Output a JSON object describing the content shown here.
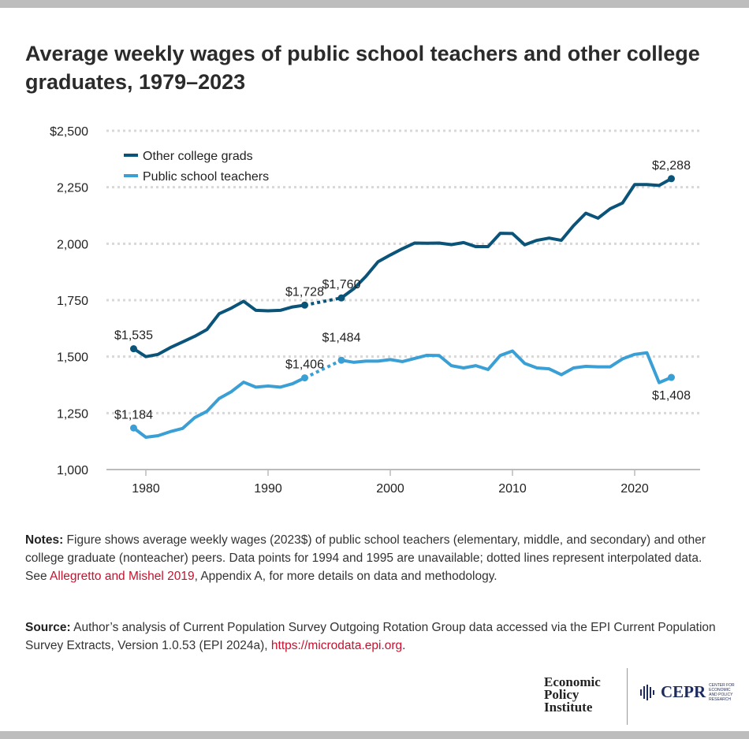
{
  "title": "Average weekly wages of public school teachers and other college graduates, 1979–2023",
  "chart_data": {
    "type": "line",
    "title": "Average weekly wages of public school teachers and other college graduates, 1979–2023",
    "xlabel": "",
    "ylabel": "",
    "xlim": [
      1977,
      2025
    ],
    "ylim": [
      1000,
      2500
    ],
    "x_ticks": [
      "1980",
      "1990",
      "2000",
      "2010",
      "2020"
    ],
    "y_ticks": [
      "$2,500",
      "2,250",
      "2,000",
      "1,750",
      "1,500",
      "1,250",
      "1,000"
    ],
    "y_tick_values": [
      2500,
      2250,
      2000,
      1750,
      1500,
      1250,
      1000
    ],
    "grid": true,
    "legend_position": "top-left",
    "interpolated_gap": [
      1993,
      1996
    ],
    "series": [
      {
        "name": "Other college grads",
        "color": "#0b5479",
        "x": [
          1979,
          1980,
          1981,
          1982,
          1983,
          1984,
          1985,
          1986,
          1987,
          1988,
          1989,
          1990,
          1991,
          1992,
          1993,
          1996,
          1997,
          1998,
          1999,
          2000,
          2001,
          2002,
          2003,
          2004,
          2005,
          2006,
          2007,
          2008,
          2009,
          2010,
          2011,
          2012,
          2013,
          2014,
          2015,
          2016,
          2017,
          2018,
          2019,
          2020,
          2021,
          2022,
          2023
        ],
        "values": [
          1535,
          1500,
          1510,
          1540,
          1565,
          1590,
          1620,
          1690,
          1715,
          1745,
          1705,
          1703,
          1705,
          1720,
          1728,
          1760,
          1800,
          1855,
          1920,
          1950,
          1978,
          2003,
          2002,
          2003,
          1996,
          2005,
          1987,
          1987,
          2046,
          2045,
          1995,
          2015,
          2025,
          2015,
          2080,
          2135,
          2113,
          2155,
          2180,
          2262,
          2262,
          2258,
          2288
        ],
        "annotations": [
          {
            "year": 1979,
            "label": "$1,535",
            "pos": "above"
          },
          {
            "year": 1993,
            "label": "$1,728",
            "pos": "above"
          },
          {
            "year": 1996,
            "label": "$1,760",
            "pos": "above"
          },
          {
            "year": 2023,
            "label": "$2,288",
            "pos": "above"
          }
        ]
      },
      {
        "name": "Public school teachers",
        "color": "#3a9fd5",
        "x": [
          1979,
          1980,
          1981,
          1982,
          1983,
          1984,
          1985,
          1986,
          1987,
          1988,
          1989,
          1990,
          1991,
          1992,
          1993,
          1996,
          1997,
          1998,
          1999,
          2000,
          2001,
          2002,
          2003,
          2004,
          2005,
          2006,
          2007,
          2008,
          2009,
          2010,
          2011,
          2012,
          2013,
          2014,
          2015,
          2016,
          2017,
          2018,
          2019,
          2020,
          2021,
          2022,
          2023
        ],
        "values": [
          1184,
          1143,
          1150,
          1168,
          1182,
          1230,
          1258,
          1315,
          1345,
          1387,
          1365,
          1370,
          1365,
          1380,
          1406,
          1484,
          1475,
          1480,
          1480,
          1487,
          1478,
          1492,
          1506,
          1505,
          1460,
          1450,
          1460,
          1443,
          1505,
          1525,
          1470,
          1450,
          1446,
          1420,
          1450,
          1457,
          1455,
          1455,
          1490,
          1510,
          1517,
          1385,
          1408
        ],
        "annotations": [
          {
            "year": 1979,
            "label": "$1,184",
            "pos": "above"
          },
          {
            "year": 1993,
            "label": "$1,406",
            "pos": "above"
          },
          {
            "year": 1996,
            "label": "$1,484",
            "pos": "above-high"
          },
          {
            "year": 2023,
            "label": "$1,408",
            "pos": "below"
          }
        ]
      }
    ]
  },
  "notes": {
    "notes_label": "Notes:",
    "notes_text_1": " Figure shows average weekly wages (2023$) of public school teachers (elementary, middle, and secondary) and other college graduate (nonteacher) peers. Data points for 1994 and 1995 are unavailable; dotted lines represent interpolated data. See ",
    "notes_link": "Allegretto and Mishel 2019",
    "notes_text_2": ", Appendix A, for more details on data and methodology.",
    "source_label": "Source:",
    "source_text": " Author’s analysis of Current Population Survey Outgoing Rotation Group data accessed via the EPI Current Population Survey Extracts, Version 1.0.53 (EPI 2024a), ",
    "source_link": "https://microdata.epi.org",
    "source_end": "."
  },
  "logos": {
    "epi": [
      "Economic",
      "Policy",
      "Institute"
    ],
    "cepr": "CEPR",
    "cepr_sub": "Center for Economic and Policy Research"
  }
}
